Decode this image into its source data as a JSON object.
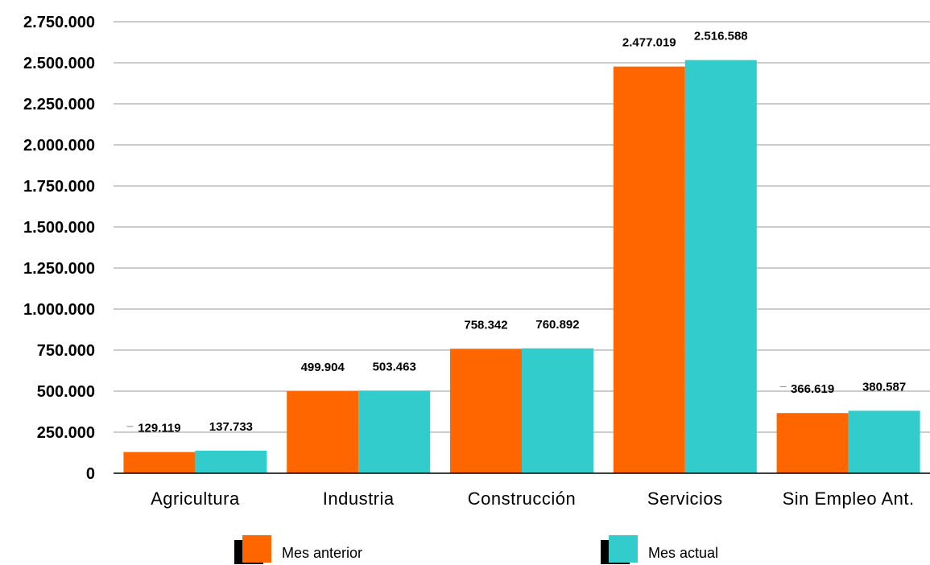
{
  "chart_data": {
    "type": "bar",
    "title": "",
    "xlabel": "",
    "ylabel": "",
    "categories": [
      "Agricultura",
      "Industria",
      "Construcción",
      "Servicios",
      "Sin Empleo Ant."
    ],
    "series": [
      {
        "name": "Mes anterior",
        "color": "#ff6600",
        "values": [
          129119,
          499904,
          758342,
          2477019,
          366619
        ],
        "labels": [
          "129.119",
          "499.904",
          "758.342",
          "2.477.019",
          "366.619"
        ]
      },
      {
        "name": "Mes actual",
        "color": "#33cccc",
        "values": [
          137733,
          503463,
          760892,
          2516588,
          380587
        ],
        "labels": [
          "137.733",
          "503.463",
          "760.892",
          "2.516.588",
          "380.587"
        ]
      }
    ],
    "ylim": [
      0,
      2750000
    ],
    "yticks": [
      0,
      250000,
      500000,
      750000,
      1000000,
      1250000,
      1500000,
      1750000,
      2000000,
      2250000,
      2500000,
      2750000
    ],
    "ytick_labels": [
      "0",
      "250.000",
      "500.000",
      "750.000",
      "1.000.000",
      "1.250.000",
      "1.500.000",
      "1.750.000",
      "2.000.000",
      "2.250.000",
      "2.500.000",
      "2.750.000"
    ],
    "grid": true,
    "legend_position": "bottom"
  }
}
